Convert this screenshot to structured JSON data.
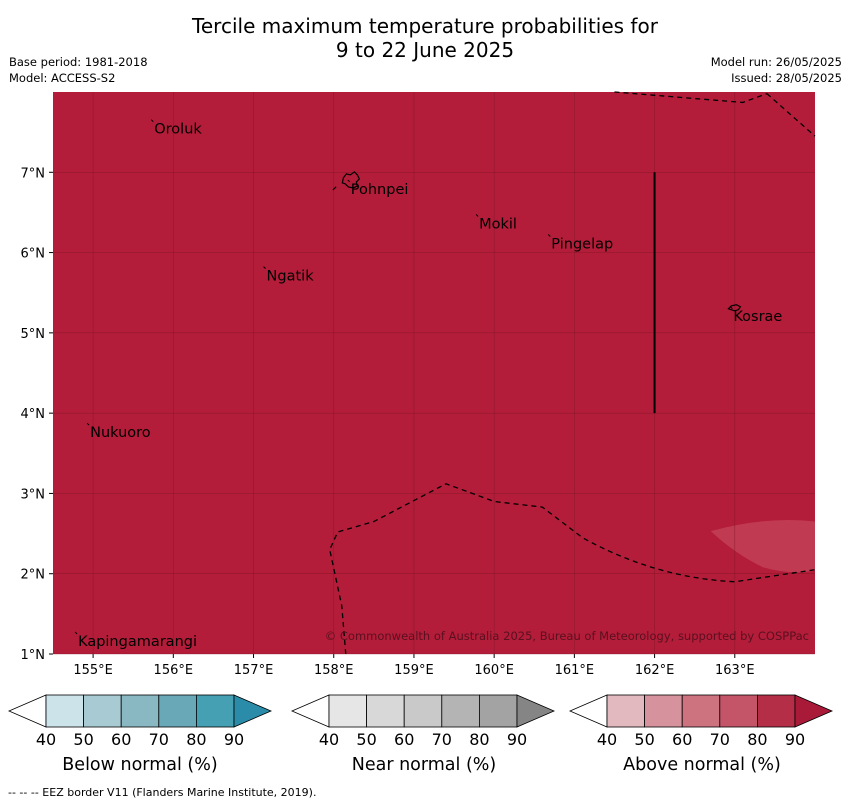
{
  "title_line1": "Tercile maximum temperature probabilities for",
  "title_line2": "9 to 22 June 2025",
  "base_period": "Base period: 1981-2018",
  "model": "Model: ACCESS-S2",
  "model_run": "Model run: 26/05/2025",
  "issued": "Issued: 28/05/2025",
  "map": {
    "fill_color": "#b31d39",
    "lon_ticks": [
      "155°E",
      "156°E",
      "157°E",
      "158°E",
      "159°E",
      "160°E",
      "161°E",
      "162°E",
      "163°E"
    ],
    "lat_ticks": [
      "1°N",
      "2°N",
      "3°N",
      "4°N",
      "5°N",
      "6°N",
      "7°N"
    ],
    "places": [
      {
        "name": "Oroluk",
        "lon": 155.75,
        "lat": 7.63
      },
      {
        "name": "Pohnpei",
        "lon": 158.2,
        "lat": 6.88
      },
      {
        "name": "Mokil",
        "lon": 159.8,
        "lat": 6.45
      },
      {
        "name": "Pingelap",
        "lon": 160.7,
        "lat": 6.2
      },
      {
        "name": "Ngatik",
        "lon": 157.15,
        "lat": 5.8
      },
      {
        "name": "Kosrae",
        "lon": 162.97,
        "lat": 5.3
      },
      {
        "name": "Nukuoro",
        "lon": 154.95,
        "lat": 3.85
      },
      {
        "name": "Kapingamarangi",
        "lon": 154.8,
        "lat": 1.25
      }
    ],
    "copyright": "© Commonwealth of Australia 2025, Bureau of Meteorology, supported by COSPPac"
  },
  "colorbars": [
    {
      "label": "Below normal (%)",
      "ticks": [
        "40",
        "50",
        "60",
        "70",
        "80",
        "90"
      ],
      "colors": [
        "#ffffff",
        "#cbe3e9",
        "#a8cbd3",
        "#89b8c3",
        "#69a9b7",
        "#45a0b3",
        "#2a8ca8"
      ]
    },
    {
      "label": "Near normal (%)",
      "ticks": [
        "40",
        "50",
        "60",
        "70",
        "80",
        "90"
      ],
      "colors": [
        "#ffffff",
        "#e6e6e6",
        "#d8d8d8",
        "#c9c9c9",
        "#b4b4b4",
        "#a3a3a3",
        "#858585"
      ]
    },
    {
      "label": "Above normal (%)",
      "ticks": [
        "40",
        "50",
        "60",
        "70",
        "80",
        "90"
      ],
      "colors": [
        "#ffffff",
        "#e3b9c0",
        "#d7939d",
        "#cd727f",
        "#c45568",
        "#b52e47",
        "#a91a38"
      ]
    }
  ],
  "footer": "-- -- -- EEZ border V11 (Flanders Marine Institute, 2019)."
}
